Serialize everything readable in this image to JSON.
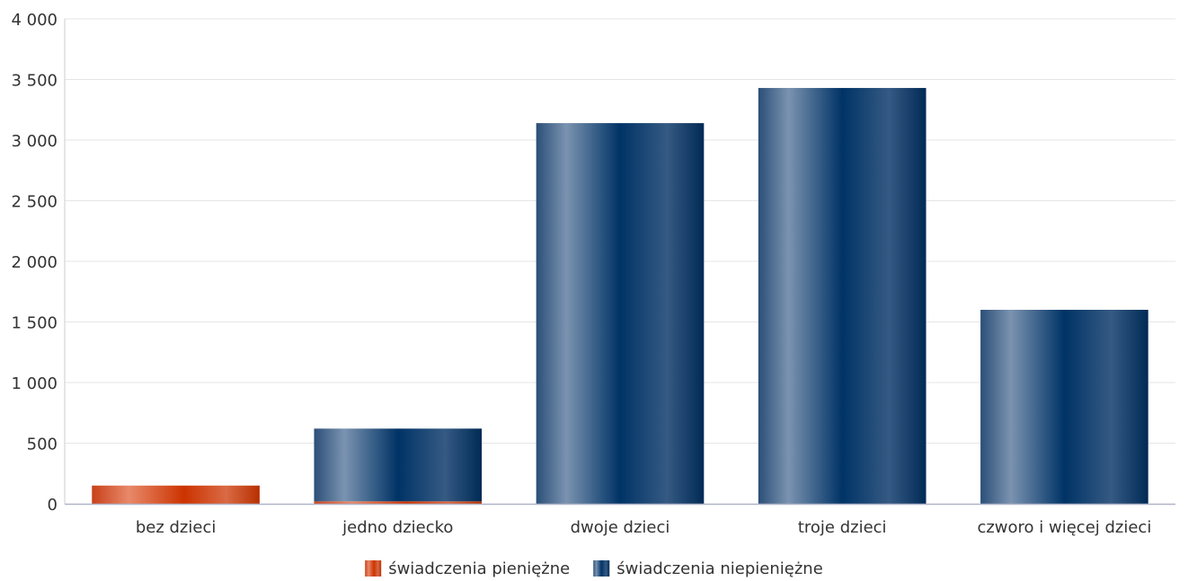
{
  "chart_data": {
    "type": "bar",
    "stacked": true,
    "title": "",
    "xlabel": "",
    "ylabel": "",
    "ylim": [
      0,
      4000
    ],
    "yticks": [
      0,
      500,
      1000,
      1500,
      2000,
      2500,
      3000,
      3500,
      4000
    ],
    "ytick_labels": [
      "0",
      "500",
      "1 000",
      "1 500",
      "2 000",
      "2 500",
      "3 000",
      "3 500",
      "4 000"
    ],
    "grid": true,
    "legend_position": "bottom-center",
    "categories": [
      "bez dzieci",
      "jedno dziecko",
      "dwoje dzieci",
      "troje dzieci",
      "czworo i więcej dzieci"
    ],
    "series": [
      {
        "name": "świadczenia pieniężne",
        "color": "#cc3300",
        "values": [
          150,
          20,
          0,
          0,
          0
        ]
      },
      {
        "name": "świadczenia niepieniężne",
        "color": "#003366",
        "values": [
          0,
          600,
          3140,
          3430,
          1600
        ]
      }
    ]
  }
}
